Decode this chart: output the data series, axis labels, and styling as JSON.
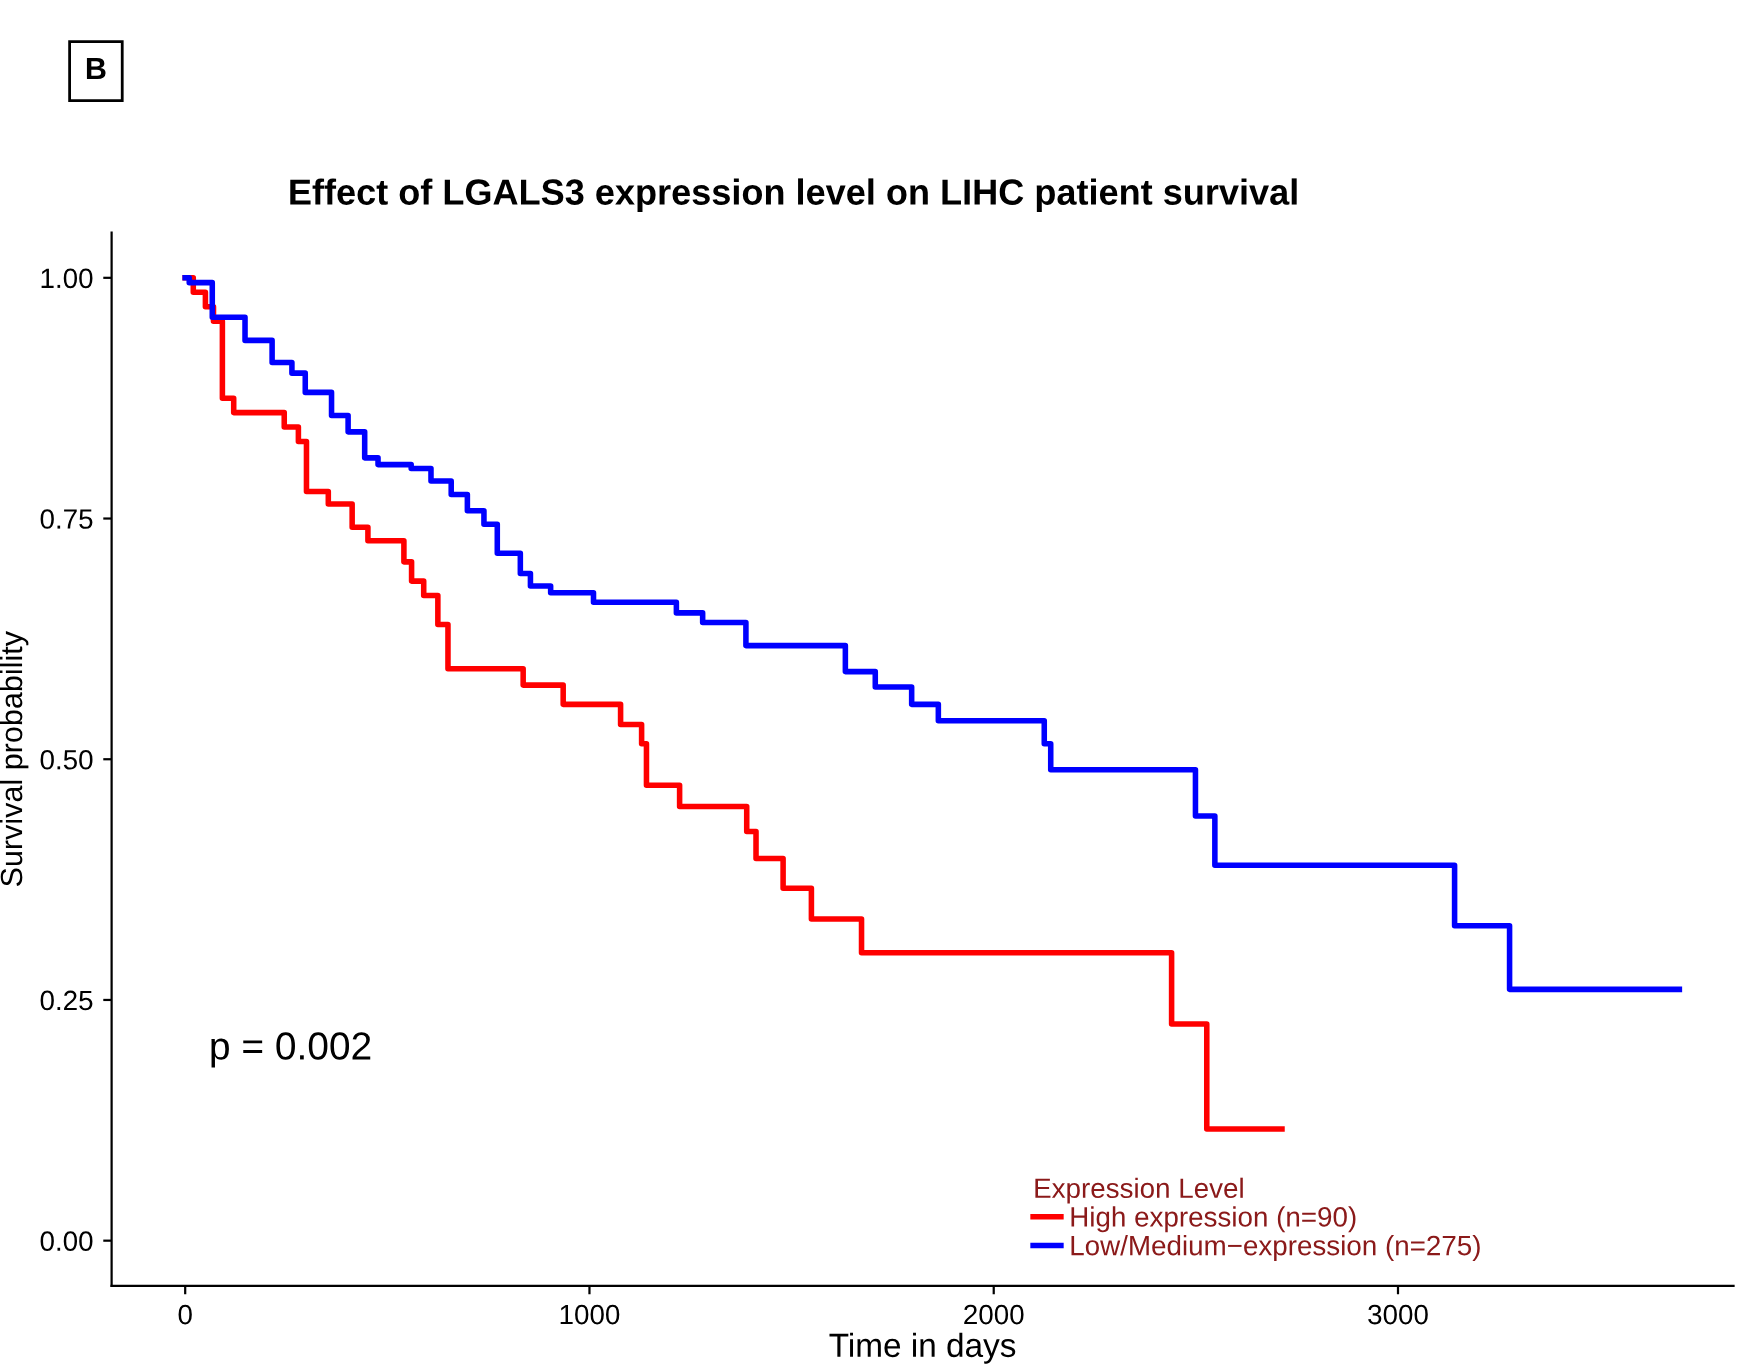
{
  "chart_data": {
    "type": "step",
    "title": "Effect of LGALS3 expression level on LIHC patient survival",
    "xlabel": "Time in days",
    "ylabel": "Survival probability",
    "legend_title": "Expression Level",
    "annotations": [
      "B",
      "p = 0.002"
    ],
    "series": [
      {
        "name": "High expression (n=90)",
        "color": "#ff0000",
        "x": [
          0,
          20,
          50,
          70,
          92,
          120,
          245,
          280,
          300,
          354,
          413,
          452,
          541,
          560,
          590,
          625,
          650,
          836,
          935,
          1077,
          1129,
          1141,
          1223,
          1389,
          1412,
          1479,
          1549,
          1673,
          2440,
          2527,
          2713
        ],
        "values": [
          1.0,
          0.985,
          0.97,
          0.955,
          0.875,
          0.86,
          0.845,
          0.83,
          0.778,
          0.765,
          0.741,
          0.727,
          0.705,
          0.685,
          0.67,
          0.64,
          0.594,
          0.577,
          0.557,
          0.536,
          0.516,
          0.473,
          0.451,
          0.425,
          0.397,
          0.366,
          0.334,
          0.299,
          0.225,
          0.116,
          0.116
        ]
      },
      {
        "name": "Low/Medium−expression (n=275)",
        "color": "#0000ff",
        "x": [
          0,
          10,
          67,
          148,
          215,
          264,
          297,
          362,
          403,
          444,
          477,
          559,
          608,
          658,
          698,
          739,
          772,
          829,
          854,
          904,
          1010,
          1215,
          1280,
          1387,
          1633,
          1707,
          1797,
          1863,
          2125,
          2141,
          2499,
          2547,
          3140,
          3276,
          3696
        ],
        "values": [
          1.0,
          0.995,
          0.959,
          0.935,
          0.912,
          0.901,
          0.881,
          0.857,
          0.84,
          0.813,
          0.806,
          0.802,
          0.789,
          0.775,
          0.758,
          0.744,
          0.714,
          0.693,
          0.68,
          0.673,
          0.663,
          0.652,
          0.642,
          0.618,
          0.591,
          0.575,
          0.557,
          0.54,
          0.516,
          0.489,
          0.441,
          0.39,
          0.327,
          0.261,
          0.261
        ]
      }
    ],
    "xlim": [
      -182,
      3830
    ],
    "ylim": [
      -0.047,
      1.047
    ],
    "xticks": [
      0,
      1000,
      2000,
      3000
    ],
    "yticks": [
      {
        "value": 0,
        "label": "0.00"
      },
      {
        "value": 0.25,
        "label": "0.25"
      },
      {
        "value": 0.5,
        "label": "0.50"
      },
      {
        "value": 0.75,
        "label": "0.75"
      },
      {
        "value": 1,
        "label": "1.00"
      }
    ],
    "grid": false,
    "legend": "bottom right",
    "line_style": "solid"
  }
}
